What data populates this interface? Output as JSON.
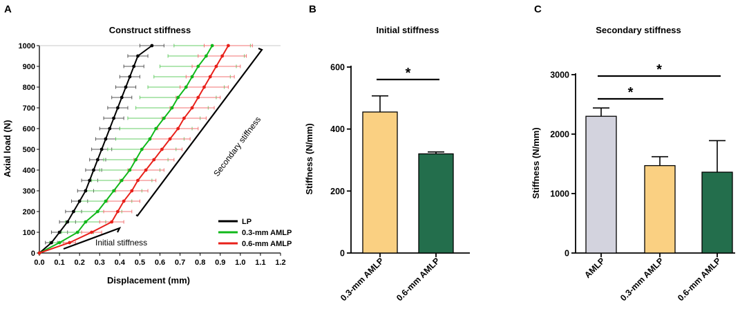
{
  "chart_data": [
    {
      "panel": "A",
      "type": "line",
      "title": "Construct stiffness",
      "xlabel": "Displacement (mm)",
      "ylabel": "Axial load (N)",
      "xlim": [
        0,
        1.2
      ],
      "ylim": [
        0,
        1000
      ],
      "xticks": [
        "0.0",
        "0.1",
        "0.2",
        "0.3",
        "0.4",
        "0.5",
        "0.6",
        "0.7",
        "0.8",
        "0.9",
        "1.0",
        "1.1",
        "1.2"
      ],
      "yticks": [
        "0",
        "100",
        "200",
        "300",
        "400",
        "500",
        "600",
        "700",
        "800",
        "900",
        "1000"
      ],
      "y": [
        0,
        50,
        100,
        150,
        200,
        250,
        300,
        350,
        400,
        450,
        500,
        550,
        600,
        650,
        700,
        750,
        800,
        850,
        900,
        950,
        1000
      ],
      "series": [
        {
          "name": "LP",
          "color": "#000000",
          "errcolor": "#555555",
          "x": [
            0,
            0.06,
            0.1,
            0.14,
            0.17,
            0.2,
            0.23,
            0.25,
            0.27,
            0.29,
            0.31,
            0.33,
            0.35,
            0.37,
            0.39,
            0.41,
            0.43,
            0.45,
            0.47,
            0.49,
            0.56
          ],
          "err": [
            0,
            0.03,
            0.04,
            0.04,
            0.04,
            0.04,
            0.04,
            0.04,
            0.04,
            0.04,
            0.05,
            0.05,
            0.05,
            0.05,
            0.05,
            0.05,
            0.05,
            0.05,
            0.05,
            0.05,
            0.06
          ]
        },
        {
          "name": "0.3-mm AMLP",
          "color": "#10b81a",
          "errcolor": "#66cc66",
          "x": [
            0,
            0.1,
            0.19,
            0.23,
            0.29,
            0.33,
            0.37,
            0.41,
            0.45,
            0.48,
            0.51,
            0.55,
            0.58,
            0.62,
            0.66,
            0.69,
            0.73,
            0.76,
            0.79,
            0.83,
            0.86
          ],
          "err": [
            0,
            0.05,
            0.08,
            0.1,
            0.12,
            0.13,
            0.14,
            0.15,
            0.15,
            0.16,
            0.17,
            0.17,
            0.18,
            0.18,
            0.18,
            0.19,
            0.19,
            0.19,
            0.19,
            0.19,
            0.19
          ]
        },
        {
          "name": "0.6-mm AMLP",
          "color": "#e8201a",
          "errcolor": "#f07070",
          "x": [
            0,
            0.15,
            0.26,
            0.36,
            0.39,
            0.42,
            0.46,
            0.49,
            0.53,
            0.57,
            0.61,
            0.65,
            0.69,
            0.72,
            0.76,
            0.79,
            0.82,
            0.85,
            0.88,
            0.91,
            0.94
          ],
          "err": [
            0,
            0.03,
            0.05,
            0.06,
            0.07,
            0.08,
            0.08,
            0.09,
            0.09,
            0.1,
            0.1,
            0.1,
            0.1,
            0.11,
            0.11,
            0.11,
            0.12,
            0.12,
            0.12,
            0.12,
            0.12
          ]
        }
      ],
      "annotations": {
        "initial": "Initial stiffness",
        "secondary": "Secondary stiffness"
      }
    },
    {
      "panel": "B",
      "type": "bar",
      "title": "Initial stiffness",
      "xlabel": "",
      "ylabel": "Stiffness (N/mm)",
      "ylim": [
        0,
        600
      ],
      "yticks": [
        "0",
        "200",
        "400",
        "600"
      ],
      "categories": [
        "0.3-mm AMLP",
        "0.6-mm AMLP"
      ],
      "values": [
        455,
        320
      ],
      "errors": [
        52,
        6
      ],
      "colors": [
        "#fad082",
        "#236e4c"
      ],
      "significance": [
        {
          "pair": [
            0,
            1
          ],
          "label": "*"
        }
      ]
    },
    {
      "panel": "C",
      "type": "bar",
      "title": "Secondary stiffness",
      "xlabel": "",
      "ylabel": "Stiffness (N/mm)",
      "ylim": [
        0,
        3000
      ],
      "yticks": [
        "0",
        "1000",
        "2000",
        "3000"
      ],
      "categories": [
        "AMLP",
        "0.3-mm AMLP",
        "0.6-mm AMLP"
      ],
      "values": [
        2300,
        1470,
        1360
      ],
      "errors": [
        140,
        150,
        530
      ],
      "colors": [
        "#d3d3de",
        "#fad082",
        "#236e4c"
      ],
      "significance": [
        {
          "pair": [
            0,
            2
          ],
          "label": "*"
        },
        {
          "pair": [
            0,
            1
          ],
          "label": "*"
        }
      ]
    }
  ]
}
